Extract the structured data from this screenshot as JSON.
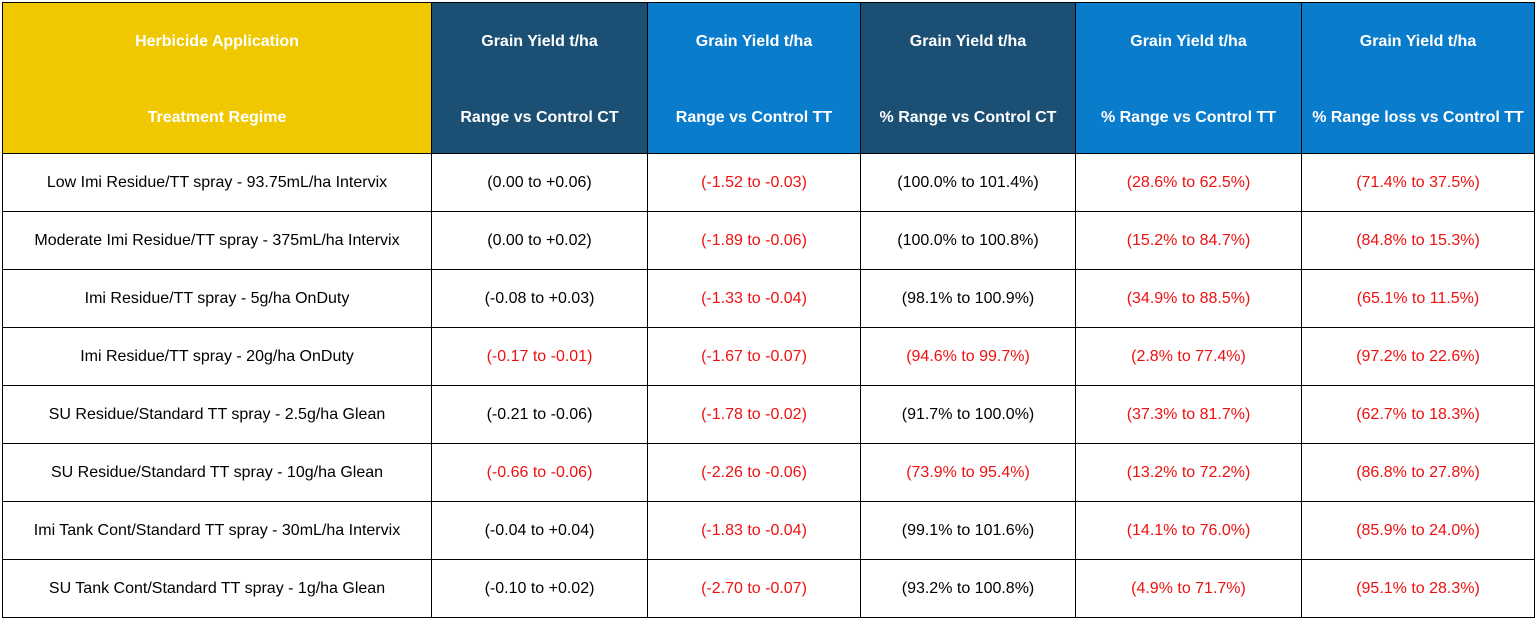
{
  "table": {
    "headers": [
      {
        "line1": "Herbicide Application",
        "line2": "Treatment Regime",
        "color": "#f0c800"
      },
      {
        "line1": "Grain Yield t/ha",
        "line2": "Range vs Control CT",
        "color": "#1b4f74"
      },
      {
        "line1": "Grain Yield t/ha",
        "line2": "Range vs Control TT",
        "color": "#0a7ccc"
      },
      {
        "line1": "Grain Yield t/ha",
        "line2": "% Range vs Control CT",
        "color": "#1b4f74"
      },
      {
        "line1": "Grain Yield t/ha",
        "line2": "% Range vs Control TT",
        "color": "#0a7ccc"
      },
      {
        "line1": "Grain Yield t/ha",
        "line2": "% Range loss vs Control TT",
        "color": "#0a7ccc"
      }
    ],
    "negative_color": "#ee1111",
    "rows": [
      {
        "treatment": "Low Imi Residue/TT spray - 93.75mL/ha Intervix",
        "cells": [
          {
            "v": "(0.00 to +0.06)",
            "neg": false
          },
          {
            "v": "(-1.52 to -0.03)",
            "neg": true
          },
          {
            "v": "(100.0% to 101.4%)",
            "neg": false
          },
          {
            "v": "(28.6% to 62.5%)",
            "neg": true
          },
          {
            "v": "(71.4% to 37.5%)",
            "neg": true
          }
        ]
      },
      {
        "treatment": "Moderate Imi Residue/TT spray - 375mL/ha Intervix",
        "cells": [
          {
            "v": "(0.00 to +0.02)",
            "neg": false
          },
          {
            "v": "(-1.89 to -0.06)",
            "neg": true
          },
          {
            "v": "(100.0% to 100.8%)",
            "neg": false
          },
          {
            "v": "(15.2% to 84.7%)",
            "neg": true
          },
          {
            "v": "(84.8% to 15.3%)",
            "neg": true
          }
        ]
      },
      {
        "treatment": "Imi Residue/TT spray - 5g/ha OnDuty",
        "cells": [
          {
            "v": "(-0.08 to +0.03)",
            "neg": false
          },
          {
            "v": "(-1.33 to -0.04)",
            "neg": true
          },
          {
            "v": "(98.1% to 100.9%)",
            "neg": false
          },
          {
            "v": "(34.9% to 88.5%)",
            "neg": true
          },
          {
            "v": "(65.1% to 11.5%)",
            "neg": true
          }
        ]
      },
      {
        "treatment": "Imi Residue/TT spray - 20g/ha OnDuty",
        "cells": [
          {
            "v": "(-0.17 to -0.01)",
            "neg": true
          },
          {
            "v": "(-1.67 to -0.07)",
            "neg": true
          },
          {
            "v": "(94.6% to 99.7%)",
            "neg": true
          },
          {
            "v": "(2.8% to 77.4%)",
            "neg": true
          },
          {
            "v": "(97.2% to 22.6%)",
            "neg": true
          }
        ]
      },
      {
        "treatment": "SU Residue/Standard TT spray - 2.5g/ha Glean",
        "cells": [
          {
            "v": "(-0.21 to -0.06)",
            "neg": false
          },
          {
            "v": "(-1.78 to -0.02)",
            "neg": true
          },
          {
            "v": "(91.7% to 100.0%)",
            "neg": false
          },
          {
            "v": "(37.3% to 81.7%)",
            "neg": true
          },
          {
            "v": "(62.7% to 18.3%)",
            "neg": true
          }
        ]
      },
      {
        "treatment": "SU Residue/Standard TT spray - 10g/ha Glean",
        "cells": [
          {
            "v": "(-0.66 to -0.06)",
            "neg": true
          },
          {
            "v": "(-2.26 to -0.06)",
            "neg": true
          },
          {
            "v": "(73.9% to 95.4%)",
            "neg": true
          },
          {
            "v": "(13.2% to 72.2%)",
            "neg": true
          },
          {
            "v": "(86.8% to 27.8%)",
            "neg": true
          }
        ]
      },
      {
        "treatment": "Imi Tank Cont/Standard TT spray - 30mL/ha Intervix",
        "cells": [
          {
            "v": "(-0.04 to +0.04)",
            "neg": false
          },
          {
            "v": "(-1.83 to -0.04)",
            "neg": true
          },
          {
            "v": "(99.1% to 101.6%)",
            "neg": false
          },
          {
            "v": "(14.1% to 76.0%)",
            "neg": true
          },
          {
            "v": "(85.9% to 24.0%)",
            "neg": true
          }
        ]
      },
      {
        "treatment": "SU Tank Cont/Standard TT spray - 1g/ha Glean",
        "cells": [
          {
            "v": "(-0.10 to +0.02)",
            "neg": false
          },
          {
            "v": "(-2.70 to -0.07)",
            "neg": true
          },
          {
            "v": "(93.2% to 100.8%)",
            "neg": false
          },
          {
            "v": "(4.9% to 71.7%)",
            "neg": true
          },
          {
            "v": "(95.1% to 28.3%)",
            "neg": true
          }
        ]
      }
    ]
  }
}
